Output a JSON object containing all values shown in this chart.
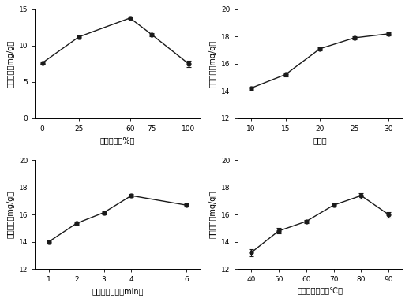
{
  "subplot1": {
    "x": [
      0,
      25,
      60,
      75,
      100
    ],
    "y": [
      7.6,
      11.2,
      13.8,
      11.5,
      7.5
    ],
    "yerr": [
      0.15,
      0.2,
      0.15,
      0.2,
      0.45
    ],
    "xlabel": "乙醇浓度（%）",
    "ylabel": "黄酮产率（mg/g）",
    "xlim": [
      -5,
      108
    ],
    "ylim": [
      0,
      15
    ],
    "xticks": [
      0,
      25,
      60,
      75,
      100
    ],
    "yticks": [
      0,
      5,
      10,
      15
    ]
  },
  "subplot2": {
    "x": [
      10,
      15,
      20,
      25,
      30
    ],
    "y": [
      14.2,
      15.2,
      17.1,
      17.9,
      18.2
    ],
    "yerr": [
      0.12,
      0.12,
      0.12,
      0.12,
      0.12
    ],
    "xlabel": "料液比",
    "ylabel": "黄酮产率（mg/g）",
    "xlim": [
      8,
      32
    ],
    "ylim": [
      12,
      20
    ],
    "xticks": [
      10,
      15,
      20,
      25,
      30
    ],
    "yticks": [
      12,
      14,
      16,
      18,
      20
    ]
  },
  "subplot3": {
    "x": [
      1,
      2,
      3,
      4,
      6
    ],
    "y": [
      14.0,
      15.35,
      16.15,
      17.4,
      16.7
    ],
    "yerr": [
      0.12,
      0.12,
      0.12,
      0.12,
      0.12
    ],
    "xlabel": "微波辐射时间（min）",
    "ylabel": "黄酮产率（mg/g）",
    "xlim": [
      0.5,
      6.5
    ],
    "ylim": [
      12,
      20
    ],
    "xticks": [
      1,
      2,
      3,
      4,
      6
    ],
    "yticks": [
      12,
      14,
      16,
      18,
      20
    ]
  },
  "subplot4": {
    "x": [
      40,
      50,
      60,
      70,
      80,
      90
    ],
    "y": [
      13.2,
      14.8,
      15.5,
      16.7,
      17.4,
      16.0
    ],
    "yerr": [
      0.25,
      0.2,
      0.12,
      0.12,
      0.2,
      0.2
    ],
    "xlabel": "微波辐射温度（℃）",
    "ylabel": "黄酮产率（mg/g）",
    "xlim": [
      35,
      95
    ],
    "ylim": [
      12,
      20
    ],
    "xticks": [
      40,
      50,
      60,
      70,
      80,
      90
    ],
    "yticks": [
      12,
      14,
      16,
      18,
      20
    ]
  },
  "line_color": "#1a1a1a",
  "marker": "o",
  "markersize": 3.5,
  "linewidth": 1.0,
  "capsize": 2,
  "font_size": 7,
  "label_font_size": 7,
  "tick_font_size": 6.5
}
